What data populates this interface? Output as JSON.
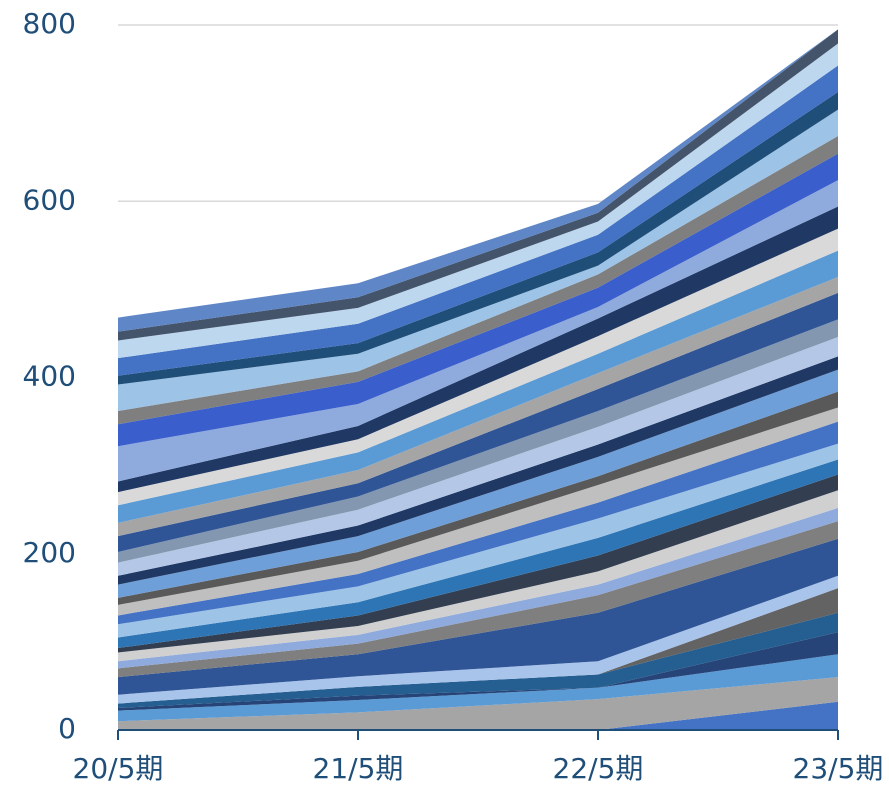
{
  "chart_data": {
    "type": "stacked_area",
    "categories": [
      "20/5期",
      "21/5期",
      "22/5期",
      "23/5期"
    ],
    "ylim": [
      0,
      800
    ],
    "yticks": [
      0,
      200,
      400,
      600,
      800
    ],
    "grid": true,
    "series": [
      {
        "color": "#4472c4",
        "values": [
          0,
          0,
          0,
          32
        ]
      },
      {
        "color": "#a5a5a5",
        "values": [
          10,
          20,
          35,
          28
        ]
      },
      {
        "color": "#5b9bd5",
        "values": [
          12,
          14,
          13,
          26
        ]
      },
      {
        "color": "#264478",
        "values": [
          3,
          5,
          0,
          25
        ]
      },
      {
        "color": "#255e91",
        "values": [
          5,
          10,
          15,
          22
        ]
      },
      {
        "color": "#636363",
        "values": [
          0,
          0,
          0,
          28
        ]
      },
      {
        "color": "#a9c4eb",
        "values": [
          10,
          12,
          15,
          14
        ]
      },
      {
        "color": "#2f5597",
        "values": [
          20,
          25,
          55,
          42
        ]
      },
      {
        "color": "#7f7f7f",
        "values": [
          10,
          12,
          20,
          20
        ]
      },
      {
        "color": "#8faadc",
        "values": [
          8,
          10,
          12,
          15
        ]
      },
      {
        "color": "#d0d0d0",
        "values": [
          10,
          10,
          15,
          20
        ]
      },
      {
        "color": "#333f50",
        "values": [
          5,
          12,
          18,
          18
        ]
      },
      {
        "color": "#2e75b6",
        "values": [
          12,
          15,
          20,
          17
        ]
      },
      {
        "color": "#9dc3e6",
        "values": [
          15,
          18,
          22,
          18
        ]
      },
      {
        "color": "#4472c4",
        "values": [
          10,
          14,
          18,
          25
        ]
      },
      {
        "color": "#bfbfbf",
        "values": [
          12,
          15,
          20,
          16
        ]
      },
      {
        "color": "#595959",
        "values": [
          8,
          10,
          10,
          18
        ]
      },
      {
        "color": "#6f9fd8",
        "values": [
          15,
          18,
          22,
          25
        ]
      },
      {
        "color": "#1f3864",
        "values": [
          10,
          12,
          14,
          15
        ]
      },
      {
        "color": "#b4c7e7",
        "values": [
          15,
          18,
          20,
          22
        ]
      },
      {
        "color": "#8497b0",
        "values": [
          12,
          15,
          18,
          20
        ]
      },
      {
        "color": "#2f5597",
        "values": [
          18,
          15,
          25,
          30
        ]
      },
      {
        "color": "#a5a5a5",
        "values": [
          15,
          15,
          18,
          18
        ]
      },
      {
        "color": "#5b9bd5",
        "values": [
          20,
          20,
          22,
          30
        ]
      },
      {
        "color": "#d9d9d9",
        "values": [
          15,
          15,
          20,
          25
        ]
      },
      {
        "color": "#203864",
        "values": [
          12,
          15,
          20,
          25
        ]
      },
      {
        "color": "#8faadc",
        "values": [
          40,
          25,
          13,
          30
        ]
      },
      {
        "color": "#3a5fcd",
        "values": [
          25,
          25,
          22,
          30
        ]
      },
      {
        "color": "#7f7f7f",
        "values": [
          15,
          12,
          15,
          20
        ]
      },
      {
        "color": "#9dc3e6",
        "values": [
          30,
          20,
          10,
          30
        ]
      },
      {
        "color": "#1f4e79",
        "values": [
          10,
          12,
          15,
          20
        ]
      },
      {
        "color": "#4472c4",
        "values": [
          20,
          22,
          20,
          30
        ]
      },
      {
        "color": "#bdd7ee",
        "values": [
          20,
          18,
          15,
          25
        ]
      },
      {
        "color": "#44546a",
        "values": [
          10,
          12,
          10,
          16
        ]
      },
      {
        "color": "#5f87c7",
        "values": [
          16,
          16,
          10,
          0
        ]
      }
    ]
  }
}
